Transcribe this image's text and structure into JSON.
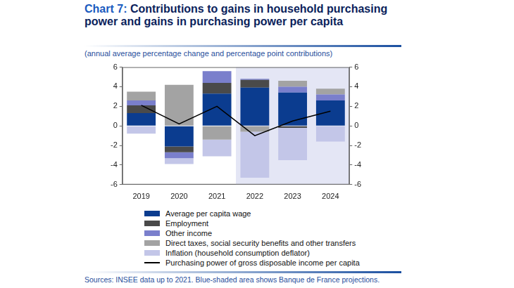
{
  "chart_data": {
    "type": "bar",
    "title": "Chart 7: Contributions to gains in household purchasing power and gains in purchasing power per capita",
    "subtitle": "(annual average percentage change and percentage point contributions)",
    "source": "Sources: INSEE data up to 2021. Blue-shaded area shows Banque de France projections.",
    "categories": [
      "2019",
      "2020",
      "2021",
      "2022",
      "2023",
      "2024"
    ],
    "stacked": true,
    "grid": false,
    "legend": "bottom",
    "ylim": [
      -6,
      6
    ],
    "yticks": [
      -6,
      -4,
      -2,
      0,
      2,
      4,
      6
    ],
    "y2lim": [
      -6,
      6
    ],
    "y2ticks": [
      -6,
      -4,
      -2,
      0,
      2,
      4,
      6
    ],
    "shaded_categories": [
      "2022",
      "2023",
      "2024"
    ],
    "series": [
      {
        "name": "Average per capita wage",
        "type": "bar",
        "color": "#0b3c8f",
        "values": [
          1.3,
          -2.1,
          3.3,
          3.9,
          3.4,
          2.6
        ]
      },
      {
        "name": "Employment",
        "type": "bar",
        "color": "#4a4a4a",
        "values": [
          0.8,
          -0.6,
          1.1,
          0.8,
          -0.2,
          0.0
        ]
      },
      {
        "name": "Other income",
        "type": "bar",
        "color": "#7a7fcc",
        "values": [
          0.5,
          -0.6,
          1.2,
          0.1,
          0.6,
          0.6
        ]
      },
      {
        "name": "Direct taxes, social security benefits and other transfers",
        "type": "bar",
        "color": "#a3a3a3",
        "values": [
          0.9,
          4.2,
          -1.4,
          -0.6,
          0.6,
          0.6
        ]
      },
      {
        "name": "Inflation (household consumption deflator)",
        "type": "bar",
        "color": "#c3c6e8",
        "values": [
          -0.8,
          -0.6,
          -1.7,
          -4.7,
          -3.3,
          -1.6
        ]
      },
      {
        "name": "Purchasing power of gross disposable income per capita",
        "type": "line",
        "color": "#000000",
        "values": [
          2.1,
          0.2,
          2.0,
          -1.0,
          0.5,
          1.5
        ]
      }
    ]
  }
}
